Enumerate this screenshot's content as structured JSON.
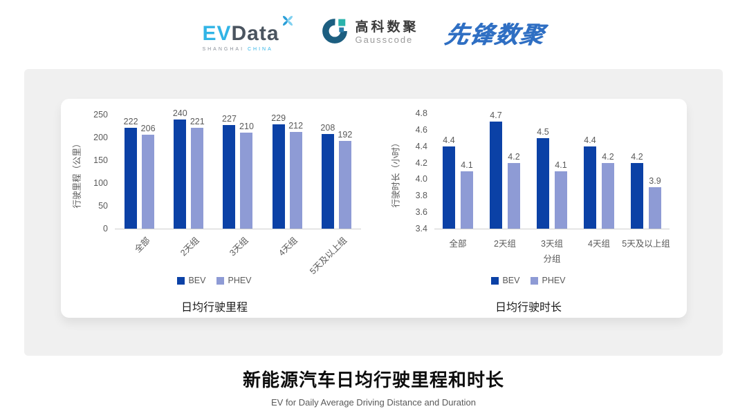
{
  "header": {
    "evdata": {
      "part1": "EV",
      "part2": "Data",
      "tagline_left": "SHANGHAI",
      "tagline_right": "CHINA"
    },
    "gausscode": {
      "name_cn": "高科数聚",
      "name_en": "Gausscode"
    },
    "pioneer": {
      "name": "先锋数聚"
    }
  },
  "colors": {
    "bev": "#0B41A6",
    "phev": "#8E9BD5",
    "axis_line": "#CFCFCF",
    "tick_text": "#595959",
    "chart_title_text": "#1a1a1a",
    "panel_bg": "#F0F0F0"
  },
  "chart_data": [
    {
      "type": "bar",
      "title": "日均行驶里程",
      "ylabel": "行驶里程（公里）",
      "xlabel": "",
      "categories": [
        "全部",
        "2天组",
        "3天组",
        "4天组",
        "5天及以上组"
      ],
      "series": [
        {
          "name": "BEV",
          "color": "#0B41A6",
          "values": [
            222,
            240,
            227,
            229,
            208
          ]
        },
        {
          "name": "PHEV",
          "color": "#8E9BD5",
          "values": [
            206,
            221,
            210,
            212,
            192
          ]
        }
      ],
      "ylim": [
        0,
        250
      ],
      "ytick_step": 50,
      "ytick_decimals": 0,
      "value_decimals": 0,
      "rotated_xticks": true,
      "grid": false,
      "legend_position": "bottom"
    },
    {
      "type": "bar",
      "title": "日均行驶时长",
      "ylabel": "行驶时长（小时）",
      "xlabel": "分组",
      "categories": [
        "全部",
        "2天组",
        "3天组",
        "4天组",
        "5天及以上组"
      ],
      "series": [
        {
          "name": "BEV",
          "color": "#0B41A6",
          "values": [
            4.4,
            4.7,
            4.5,
            4.4,
            4.2
          ]
        },
        {
          "name": "PHEV",
          "color": "#8E9BD5",
          "values": [
            4.1,
            4.2,
            4.1,
            4.2,
            3.9
          ]
        }
      ],
      "ylim": [
        3.4,
        4.8
      ],
      "ytick_step": 0.2,
      "ytick_decimals": 1,
      "value_decimals": 1,
      "rotated_xticks": false,
      "grid": false,
      "legend_position": "bottom"
    }
  ],
  "footer": {
    "title": "新能源汽车日均行驶里程和时长",
    "subtitle": "EV for Daily Average Driving Distance and Duration"
  }
}
